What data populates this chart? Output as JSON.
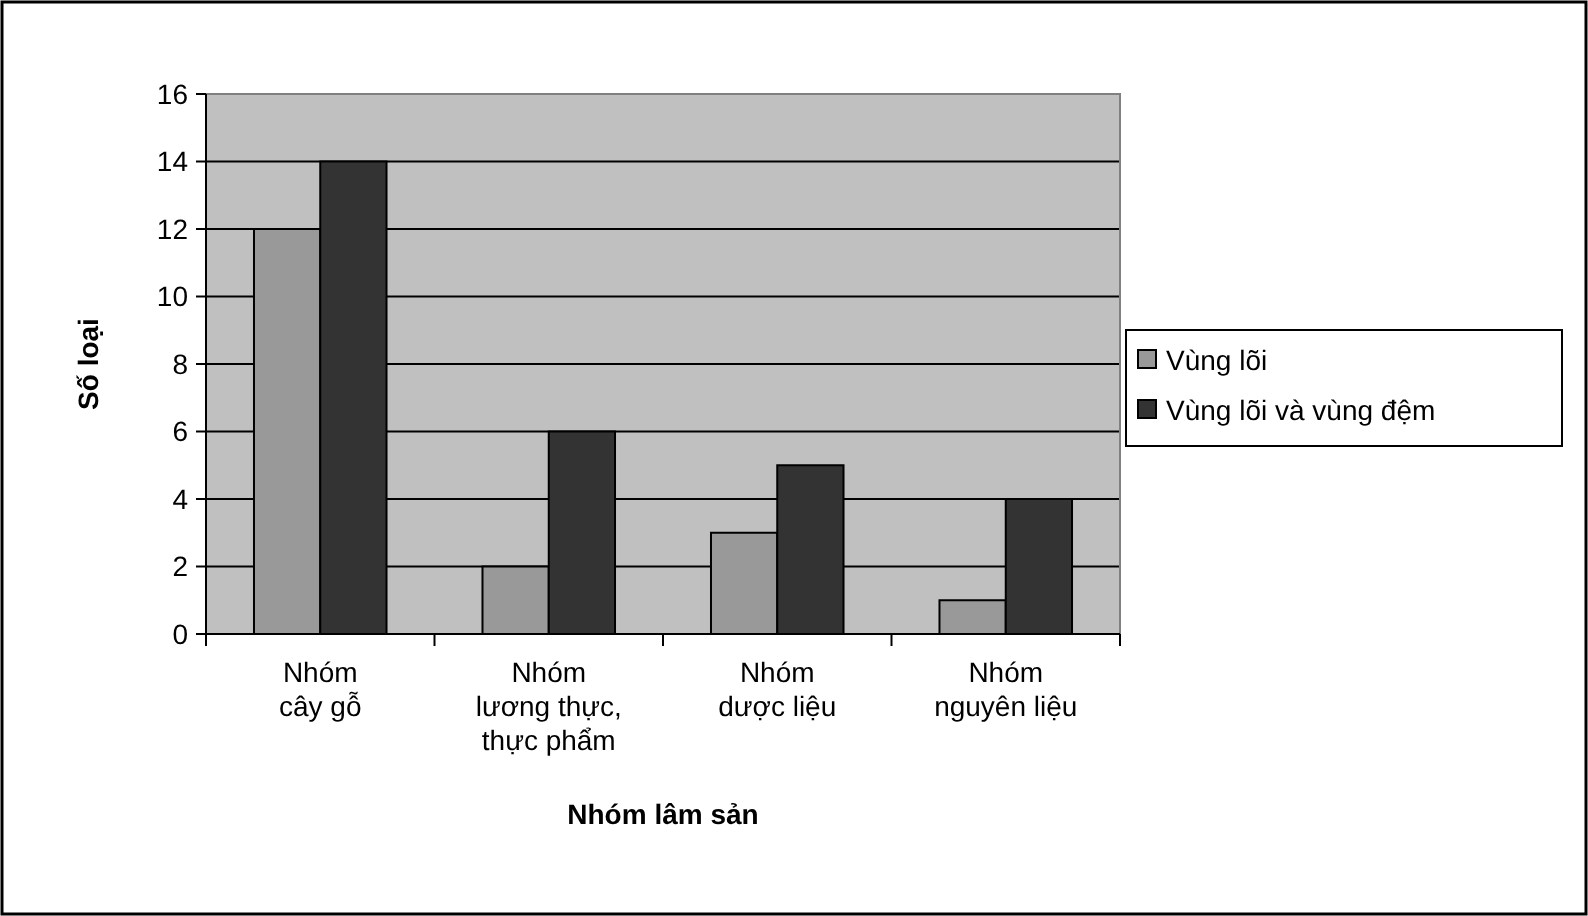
{
  "chart_data": {
    "type": "bar",
    "xlabel": "Nhóm lâm sản",
    "ylabel": "Số loại",
    "categories": [
      "Nhóm\ncây gỗ",
      "Nhóm\nlương thực,\nthực phẩm",
      "Nhóm\ndược liệu",
      "Nhóm\nnguyên liệu"
    ],
    "series": [
      {
        "name": "Vùng lõi",
        "color": "#999999",
        "values": [
          12,
          2,
          3,
          1
        ]
      },
      {
        "name": "Vùng lõi và vùng đệm",
        "color": "#333333",
        "values": [
          14,
          6,
          5,
          4
        ]
      }
    ],
    "ylim": [
      0,
      16
    ],
    "yticks": [
      0,
      2,
      4,
      6,
      8,
      10,
      12,
      14,
      16
    ],
    "grid": "y",
    "legend": "right"
  }
}
